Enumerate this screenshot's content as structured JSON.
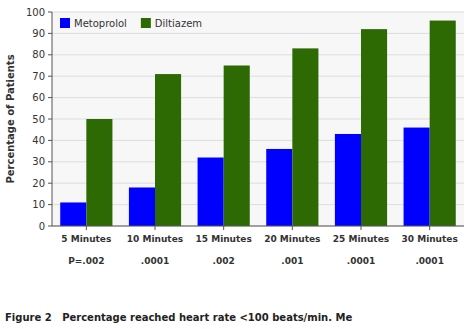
{
  "chart_data": {
    "type": "bar",
    "categories": [
      "5 Minutes",
      "10 Minutes",
      "15 Minutes",
      "20 Minutes",
      "25 Minutes",
      "30 Minutes"
    ],
    "series": [
      {
        "name": "Metoprolol",
        "color": "#0000FF",
        "values": [
          11,
          18,
          32,
          36,
          43,
          46
        ]
      },
      {
        "name": "Diltiazem",
        "color": "#2D6A04",
        "values": [
          50,
          71,
          75,
          83,
          92,
          96
        ]
      }
    ],
    "y_label": "Percentage of Patients",
    "ylim": [
      0,
      100
    ],
    "yticks": [
      0,
      10,
      20,
      30,
      40,
      50,
      60,
      70,
      80,
      90,
      100
    ],
    "grid": true,
    "legend": "upper left",
    "p_values": [
      "P=.002",
      ".0001",
      ".002",
      ".001",
      ".0001",
      ".0001"
    ],
    "caption": "Figure 2   Percentage reached heart rate <100 beats/min. Me"
  }
}
